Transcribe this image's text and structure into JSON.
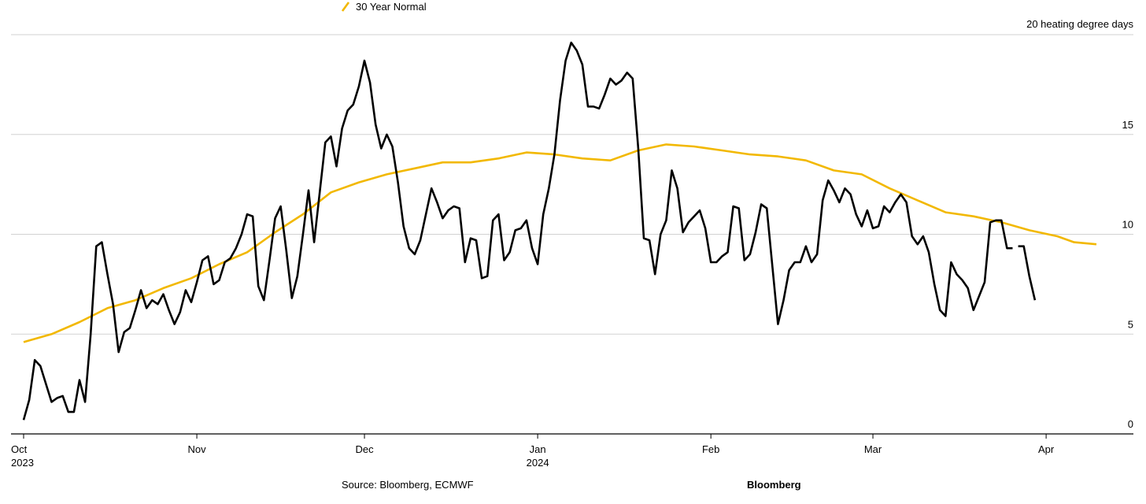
{
  "chart_data": {
    "type": "line",
    "unit_label": "heating degree days",
    "ylim": [
      0,
      20
    ],
    "yticks": [
      0,
      5,
      10,
      15,
      20
    ],
    "grid": true,
    "legend": {
      "placement": "top",
      "entries": [
        {
          "name": "30 Year Normal",
          "color": "#F2B800"
        }
      ]
    },
    "x_range": [
      "2023-10-01",
      "2024-04-10"
    ],
    "x_ticks": [
      {
        "date": "2023-10-01",
        "label": "Oct",
        "sublabel": "2023"
      },
      {
        "date": "2023-11-01",
        "label": "Nov",
        "sublabel": ""
      },
      {
        "date": "2023-12-01",
        "label": "Dec",
        "sublabel": ""
      },
      {
        "date": "2024-01-01",
        "label": "Jan",
        "sublabel": "2024"
      },
      {
        "date": "2024-02-01",
        "label": "Feb",
        "sublabel": ""
      },
      {
        "date": "2024-03-01",
        "label": "Mar",
        "sublabel": ""
      },
      {
        "date": "2024-04-01",
        "label": "Apr",
        "sublabel": ""
      }
    ],
    "series": [
      {
        "color": "#000000",
        "points": [
          [
            "2023-10-01",
            0.7
          ],
          [
            "2023-10-02",
            1.7
          ],
          [
            "2023-10-03",
            3.7
          ],
          [
            "2023-10-04",
            3.4
          ],
          [
            "2023-10-05",
            2.5
          ],
          [
            "2023-10-06",
            1.6
          ],
          [
            "2023-10-07",
            1.8
          ],
          [
            "2023-10-08",
            1.9
          ],
          [
            "2023-10-09",
            1.1
          ],
          [
            "2023-10-10",
            1.1
          ],
          [
            "2023-10-11",
            2.7
          ],
          [
            "2023-10-12",
            1.6
          ],
          [
            "2023-10-13",
            5.0
          ],
          [
            "2023-10-14",
            9.4
          ],
          [
            "2023-10-15",
            9.6
          ],
          [
            "2023-10-16",
            8.0
          ],
          [
            "2023-10-17",
            6.5
          ],
          [
            "2023-10-18",
            4.1
          ],
          [
            "2023-10-19",
            5.1
          ],
          [
            "2023-10-20",
            5.3
          ],
          [
            "2023-10-21",
            6.2
          ],
          [
            "2023-10-22",
            7.2
          ],
          [
            "2023-10-23",
            6.3
          ],
          [
            "2023-10-24",
            6.7
          ],
          [
            "2023-10-25",
            6.5
          ],
          [
            "2023-10-26",
            7.0
          ],
          [
            "2023-10-27",
            6.2
          ],
          [
            "2023-10-28",
            5.5
          ],
          [
            "2023-10-29",
            6.1
          ],
          [
            "2023-10-30",
            7.2
          ],
          [
            "2023-10-31",
            6.6
          ],
          [
            "2023-11-01",
            7.6
          ],
          [
            "2023-11-02",
            8.7
          ],
          [
            "2023-11-03",
            8.9
          ],
          [
            "2023-11-04",
            7.5
          ],
          [
            "2023-11-05",
            7.7
          ],
          [
            "2023-11-06",
            8.6
          ],
          [
            "2023-11-07",
            8.8
          ],
          [
            "2023-11-08",
            9.3
          ],
          [
            "2023-11-09",
            10.0
          ],
          [
            "2023-11-10",
            11.0
          ],
          [
            "2023-11-11",
            10.9
          ],
          [
            "2023-11-12",
            7.4
          ],
          [
            "2023-11-13",
            6.7
          ],
          [
            "2023-11-14",
            8.7
          ],
          [
            "2023-11-15",
            10.8
          ],
          [
            "2023-11-16",
            11.4
          ],
          [
            "2023-11-17",
            9.2
          ],
          [
            "2023-11-18",
            6.8
          ],
          [
            "2023-11-19",
            7.9
          ],
          [
            "2023-11-20",
            10.0
          ],
          [
            "2023-11-21",
            12.2
          ],
          [
            "2023-11-22",
            9.6
          ],
          [
            "2023-11-23",
            12.1
          ],
          [
            "2023-11-24",
            14.6
          ],
          [
            "2023-11-25",
            14.9
          ],
          [
            "2023-11-26",
            13.4
          ],
          [
            "2023-11-27",
            15.3
          ],
          [
            "2023-11-28",
            16.2
          ],
          [
            "2023-11-29",
            16.5
          ],
          [
            "2023-11-30",
            17.4
          ],
          [
            "2023-12-01",
            18.7
          ],
          [
            "2023-12-02",
            17.6
          ],
          [
            "2023-12-03",
            15.5
          ],
          [
            "2023-12-04",
            14.3
          ],
          [
            "2023-12-05",
            15.0
          ],
          [
            "2023-12-06",
            14.4
          ],
          [
            "2023-12-07",
            12.6
          ],
          [
            "2023-12-08",
            10.4
          ],
          [
            "2023-12-09",
            9.3
          ],
          [
            "2023-12-10",
            9.0
          ],
          [
            "2023-12-11",
            9.7
          ],
          [
            "2023-12-12",
            11.0
          ],
          [
            "2023-12-13",
            12.3
          ],
          [
            "2023-12-14",
            11.6
          ],
          [
            "2023-12-15",
            10.8
          ],
          [
            "2023-12-16",
            11.2
          ],
          [
            "2023-12-17",
            11.4
          ],
          [
            "2023-12-18",
            11.3
          ],
          [
            "2023-12-19",
            8.6
          ],
          [
            "2023-12-20",
            9.8
          ],
          [
            "2023-12-21",
            9.7
          ],
          [
            "2023-12-22",
            7.8
          ],
          [
            "2023-12-23",
            7.9
          ],
          [
            "2023-12-24",
            10.7
          ],
          [
            "2023-12-25",
            11.0
          ],
          [
            "2023-12-26",
            8.7
          ],
          [
            "2023-12-27",
            9.1
          ],
          [
            "2023-12-28",
            10.2
          ],
          [
            "2023-12-29",
            10.3
          ],
          [
            "2023-12-30",
            10.7
          ],
          [
            "2023-12-31",
            9.3
          ],
          [
            "2024-01-01",
            8.5
          ],
          [
            "2024-01-02",
            11.0
          ],
          [
            "2024-01-03",
            12.3
          ],
          [
            "2024-01-04",
            14.0
          ],
          [
            "2024-01-05",
            16.7
          ],
          [
            "2024-01-06",
            18.7
          ],
          [
            "2024-01-07",
            19.6
          ],
          [
            "2024-01-08",
            19.2
          ],
          [
            "2024-01-09",
            18.5
          ],
          [
            "2024-01-10",
            16.4
          ],
          [
            "2024-01-11",
            16.4
          ],
          [
            "2024-01-12",
            16.3
          ],
          [
            "2024-01-13",
            17.0
          ],
          [
            "2024-01-14",
            17.8
          ],
          [
            "2024-01-15",
            17.5
          ],
          [
            "2024-01-16",
            17.7
          ],
          [
            "2024-01-17",
            18.1
          ],
          [
            "2024-01-18",
            17.8
          ],
          [
            "2024-01-19",
            14.3
          ],
          [
            "2024-01-20",
            9.8
          ],
          [
            "2024-01-21",
            9.7
          ],
          [
            "2024-01-22",
            8.0
          ],
          [
            "2024-01-23",
            10.0
          ],
          [
            "2024-01-24",
            10.7
          ],
          [
            "2024-01-25",
            13.2
          ],
          [
            "2024-01-26",
            12.3
          ],
          [
            "2024-01-27",
            10.1
          ],
          [
            "2024-01-28",
            10.6
          ],
          [
            "2024-01-29",
            10.9
          ],
          [
            "2024-01-30",
            11.2
          ],
          [
            "2024-01-31",
            10.3
          ],
          [
            "2024-02-01",
            8.6
          ],
          [
            "2024-02-02",
            8.6
          ],
          [
            "2024-02-03",
            8.9
          ],
          [
            "2024-02-04",
            9.1
          ],
          [
            "2024-02-05",
            11.4
          ],
          [
            "2024-02-06",
            11.3
          ],
          [
            "2024-02-07",
            8.7
          ],
          [
            "2024-02-08",
            9.0
          ],
          [
            "2024-02-09",
            10.1
          ],
          [
            "2024-02-10",
            11.5
          ],
          [
            "2024-02-11",
            11.3
          ],
          [
            "2024-02-12",
            8.4
          ],
          [
            "2024-02-13",
            5.5
          ],
          [
            "2024-02-14",
            6.7
          ],
          [
            "2024-02-15",
            8.2
          ],
          [
            "2024-02-16",
            8.6
          ],
          [
            "2024-02-17",
            8.6
          ],
          [
            "2024-02-18",
            9.4
          ],
          [
            "2024-02-19",
            8.6
          ],
          [
            "2024-02-20",
            9.0
          ],
          [
            "2024-02-21",
            11.7
          ],
          [
            "2024-02-22",
            12.7
          ],
          [
            "2024-02-23",
            12.2
          ],
          [
            "2024-02-24",
            11.6
          ],
          [
            "2024-02-25",
            12.3
          ],
          [
            "2024-02-26",
            12.0
          ],
          [
            "2024-02-27",
            11.0
          ],
          [
            "2024-02-28",
            10.4
          ],
          [
            "2024-02-29",
            11.2
          ],
          [
            "2024-03-01",
            10.3
          ],
          [
            "2024-03-02",
            10.4
          ],
          [
            "2024-03-03",
            11.4
          ],
          [
            "2024-03-04",
            11.1
          ],
          [
            "2024-03-05",
            11.6
          ],
          [
            "2024-03-06",
            12.0
          ],
          [
            "2024-03-07",
            11.6
          ],
          [
            "2024-03-08",
            9.9
          ],
          [
            "2024-03-09",
            9.5
          ],
          [
            "2024-03-10",
            9.9
          ],
          [
            "2024-03-11",
            9.1
          ],
          [
            "2024-03-12",
            7.5
          ],
          [
            "2024-03-13",
            6.2
          ],
          [
            "2024-03-14",
            5.9
          ],
          [
            "2024-03-15",
            8.6
          ],
          [
            "2024-03-16",
            8.0
          ],
          [
            "2024-03-17",
            7.7
          ],
          [
            "2024-03-18",
            7.3
          ],
          [
            "2024-03-19",
            6.2
          ],
          [
            "2024-03-20",
            6.9
          ],
          [
            "2024-03-21",
            7.6
          ],
          [
            "2024-03-22",
            10.6
          ],
          [
            "2024-03-23",
            10.7
          ],
          [
            "2024-03-24",
            10.7
          ],
          [
            "2024-03-25",
            9.3
          ],
          [
            "2024-03-26",
            9.3
          ],
          null,
          [
            "2024-03-27",
            9.4
          ],
          [
            "2024-03-28",
            9.4
          ],
          [
            "2024-03-29",
            7.9
          ],
          [
            "2024-03-30",
            6.7
          ]
        ]
      },
      {
        "name": "30 Year Normal",
        "color": "#F2B800",
        "points": [
          [
            "2023-10-01",
            4.6
          ],
          [
            "2023-10-06",
            5.0
          ],
          [
            "2023-10-11",
            5.6
          ],
          [
            "2023-10-16",
            6.3
          ],
          [
            "2023-10-21",
            6.7
          ],
          [
            "2023-10-26",
            7.3
          ],
          [
            "2023-10-31",
            7.8
          ],
          [
            "2023-11-05",
            8.5
          ],
          [
            "2023-11-10",
            9.1
          ],
          [
            "2023-11-15",
            10.1
          ],
          [
            "2023-11-20",
            11.0
          ],
          [
            "2023-11-25",
            12.1
          ],
          [
            "2023-11-30",
            12.6
          ],
          [
            "2023-12-05",
            13.0
          ],
          [
            "2023-12-10",
            13.3
          ],
          [
            "2023-12-15",
            13.6
          ],
          [
            "2023-12-20",
            13.6
          ],
          [
            "2023-12-25",
            13.8
          ],
          [
            "2023-12-30",
            14.1
          ],
          [
            "2024-01-04",
            14.0
          ],
          [
            "2024-01-09",
            13.8
          ],
          [
            "2024-01-14",
            13.7
          ],
          [
            "2024-01-19",
            14.2
          ],
          [
            "2024-01-24",
            14.5
          ],
          [
            "2024-01-29",
            14.4
          ],
          [
            "2024-02-03",
            14.2
          ],
          [
            "2024-02-08",
            14.0
          ],
          [
            "2024-02-13",
            13.9
          ],
          [
            "2024-02-18",
            13.7
          ],
          [
            "2024-02-23",
            13.2
          ],
          [
            "2024-02-28",
            13.0
          ],
          [
            "2024-03-04",
            12.3
          ],
          [
            "2024-03-09",
            11.7
          ],
          [
            "2024-03-14",
            11.1
          ],
          [
            "2024-03-19",
            10.9
          ],
          [
            "2024-03-24",
            10.6
          ],
          [
            "2024-03-29",
            10.2
          ],
          [
            "2024-04-03",
            9.9
          ],
          [
            "2024-04-06",
            9.6
          ],
          [
            "2024-04-10",
            9.5
          ]
        ]
      }
    ]
  },
  "footer": {
    "source": "Source: Bloomberg, ECMWF",
    "brand": "Bloomberg"
  }
}
